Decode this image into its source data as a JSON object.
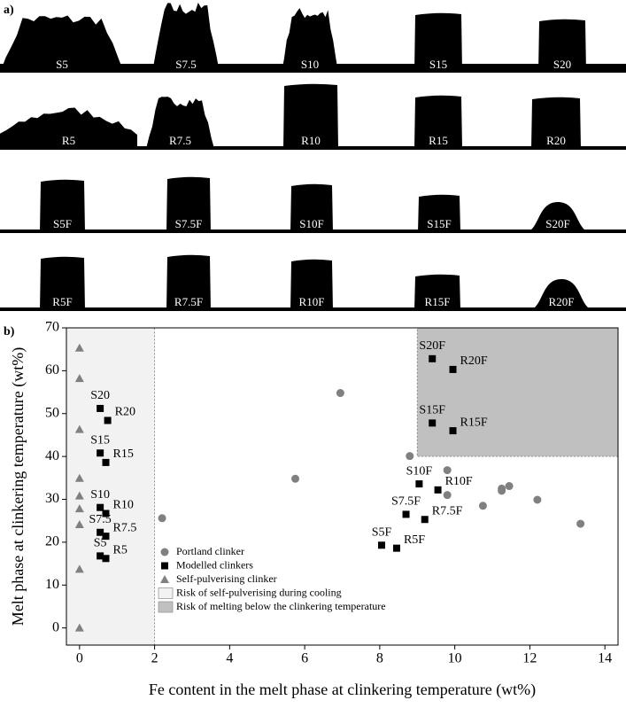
{
  "figure": {
    "panel_label": "a)",
    "rows": [
      [
        "S5",
        "S7.5",
        "S10",
        "S15",
        "S20"
      ],
      [
        "R5",
        "R7.5",
        "R10",
        "R15",
        "R20"
      ],
      [
        "S5F",
        "S7.5F",
        "S10F",
        "S15F",
        "S20F"
      ],
      [
        "R5F",
        "R7.5F",
        "R10F",
        "R15F",
        "R20F"
      ]
    ]
  },
  "chart_data": {
    "type": "scatter",
    "panel_label": "b)",
    "x_label": "Fe content in the melt phase at clinkering temperature (wt%)",
    "y_label": "Melt phase at clinkering temperature (wt%)",
    "xlim": [
      -0.35,
      14.35
    ],
    "ylim": [
      -4,
      70
    ],
    "xticks": [
      0,
      2,
      4,
      6,
      8,
      10,
      12,
      14
    ],
    "yticks": [
      0,
      10,
      20,
      30,
      40,
      50,
      60,
      70
    ],
    "legend": "lower left",
    "series": [
      {
        "name": "Portland clinker",
        "marker": "circle",
        "color": "#808080",
        "x": [
          2.2,
          5.75,
          6.95,
          8.8,
          9.8,
          9.8,
          10.75,
          11.25,
          11.25,
          11.45,
          12.2,
          13.35
        ],
        "values": [
          25.6,
          34.8,
          54.8,
          40.1,
          36.8,
          31.0,
          28.5,
          32.5,
          32.0,
          33.1,
          29.9,
          24.3
        ]
      },
      {
        "name": "Modelled clinkers",
        "marker": "square",
        "color": "#000000",
        "x": [
          0.55,
          0.75,
          0.55,
          0.7,
          0.55,
          0.7,
          0.55,
          0.7,
          0.55,
          0.7,
          9.4,
          9.95,
          9.4,
          9.95,
          9.05,
          9.55,
          8.7,
          9.2,
          8.05,
          8.45
        ],
        "values": [
          51.2,
          48.4,
          40.8,
          38.6,
          28.1,
          26.7,
          22.3,
          21.4,
          16.8,
          16.2,
          62.8,
          60.3,
          47.8,
          46.0,
          33.6,
          32.2,
          26.5,
          25.3,
          19.3,
          18.6
        ],
        "labels": [
          "S20",
          "R20",
          "S15",
          "R15",
          "S10",
          "R10",
          "S7.5",
          "R7.5",
          "S5",
          "R5",
          "S20F",
          "R20F",
          "S15F",
          "R15F",
          "S10F",
          "R10F",
          "S7.5F",
          "R7.5F",
          "S5F",
          "R5F"
        ]
      },
      {
        "name": "Self-pulverising clinker",
        "marker": "triangle",
        "color": "#808080",
        "x": [
          0,
          0,
          0,
          0,
          0,
          0,
          0,
          0,
          0
        ],
        "values": [
          65.3,
          58.2,
          46.3,
          34.9,
          30.8,
          27.8,
          24.1,
          13.7,
          0
        ]
      }
    ],
    "regions": [
      {
        "name": "Risk of self-pulverising during cooling",
        "color": "#f2f2f2",
        "xmax": 2
      },
      {
        "name": "Risk of melting below the clinkering temperature",
        "color": "#c0c0c0",
        "xmin": 9,
        "ymin": 40
      }
    ]
  }
}
